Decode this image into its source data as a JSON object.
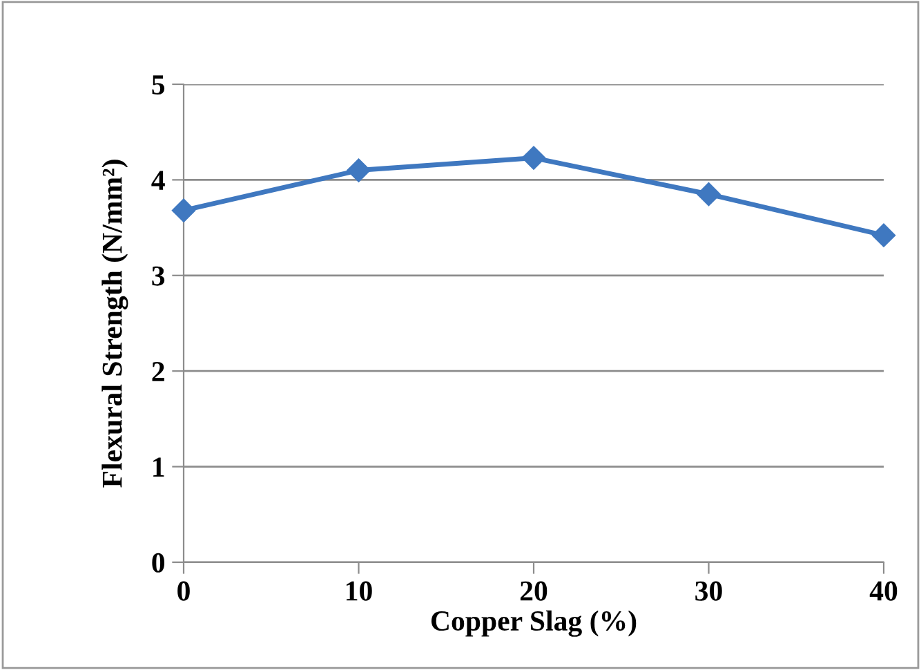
{
  "chart_data": {
    "type": "line",
    "xlabel": "Copper Slag (%)",
    "ylabel": "Flexural Strength (N/mm²)",
    "x": [
      0,
      10,
      20,
      30,
      40
    ],
    "series": [
      {
        "color": "#3f78c0",
        "values": [
          3.68,
          4.1,
          4.23,
          3.85,
          3.42
        ]
      }
    ],
    "xlim": [
      0,
      40
    ],
    "xticks": [
      0,
      10,
      20,
      30,
      40
    ],
    "ylim": [
      0,
      5
    ],
    "yticks": [
      0,
      1,
      2,
      3,
      4,
      5
    ],
    "grid": "y",
    "marker": "diamond",
    "line_style": "solid",
    "legend": false
  }
}
